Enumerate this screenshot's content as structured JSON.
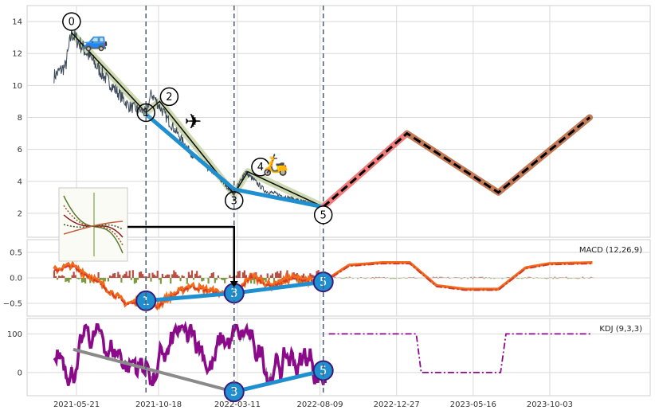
{
  "colors": {
    "grid": "#d9d9d9",
    "frame": "#cfcfcf",
    "price": "#3b4a5a",
    "wave_black": "#111111",
    "wave_highlight": "#c9d6a8",
    "blue": "#1f8fcf",
    "forecast_red": "#f07b7b",
    "forecast_brown": "#c27a56",
    "vline": "#4a5a70",
    "macd_line": "#f26a1b",
    "macd_signal": "#d23a2b",
    "macd_hist_pos": "#b23a2c",
    "macd_hist_neg": "#6f8f2a",
    "kdj": "#8a0a8a",
    "kdj_dark": "#555555",
    "badge_fill": "#1f8fcf",
    "badge_stroke": "#3a1a7a"
  },
  "chart_data": [
    {
      "type": "line",
      "panel": "price",
      "ylim": [
        0.5,
        15
      ],
      "yticks": [
        2,
        4,
        6,
        8,
        10,
        12,
        14
      ],
      "x_dates": [
        "2021-05-21",
        "2021-10-18",
        "2022-03-11",
        "2022-08-09",
        "2022-12-27",
        "2023-05-16",
        "2023-10-03"
      ],
      "price_series": {
        "start": "2021-04-10",
        "end": "2022-08-20",
        "anchors": [
          [
            "2021-04-10",
            10.6
          ],
          [
            "2021-05-01",
            11.2
          ],
          [
            "2021-05-12",
            13.3
          ],
          [
            "2021-06-05",
            12.2
          ],
          [
            "2021-07-10",
            10.6
          ],
          [
            "2021-08-25",
            8.7
          ],
          [
            "2021-09-25",
            8.3
          ],
          [
            "2021-10-05",
            9.5
          ],
          [
            "2021-11-05",
            7.8
          ],
          [
            "2021-12-20",
            5.6
          ],
          [
            "2022-02-01",
            4.4
          ],
          [
            "2022-03-05",
            3.2
          ],
          [
            "2022-03-25",
            4.6
          ],
          [
            "2022-05-01",
            3.4
          ],
          [
            "2022-07-01",
            2.8
          ],
          [
            "2022-08-15",
            2.4
          ]
        ]
      },
      "wave_points": [
        {
          "label": "0",
          "date": "2021-05-12",
          "value": 13.3
        },
        {
          "label": "1",
          "date": "2021-09-25",
          "value": 8.3
        },
        {
          "label": "2",
          "date": "2021-10-20",
          "value": 9.0
        },
        {
          "label": "3",
          "date": "2022-03-05",
          "value": 3.2
        },
        {
          "label": "4",
          "date": "2022-03-30",
          "value": 4.6
        },
        {
          "label": "5",
          "date": "2022-08-15",
          "value": 2.4
        }
      ],
      "blue_line": [
        [
          "2021-09-25",
          8.2
        ],
        [
          "2022-03-05",
          3.5
        ],
        [
          "2022-08-15",
          2.4
        ]
      ],
      "forecast_red": [
        [
          "2022-08-15",
          2.4
        ],
        [
          "2023-01-15",
          7.0
        ]
      ],
      "forecast_brown": [
        [
          "2023-01-15",
          7.0
        ],
        [
          "2023-07-01",
          3.3
        ],
        [
          "2023-12-15",
          8.0
        ]
      ],
      "forecast_dashed": [
        [
          "2022-08-15",
          2.4
        ],
        [
          "2023-01-15",
          7.0
        ],
        [
          "2023-07-01",
          3.3
        ],
        [
          "2023-12-15",
          8.0
        ]
      ],
      "vlines": [
        "2021-09-25",
        "2022-03-05",
        "2022-08-15"
      ],
      "emoji": [
        {
          "glyph": "🚙",
          "date": "2021-06-25",
          "value": 12.4
        },
        {
          "glyph": "✈",
          "date": "2021-12-20",
          "value": 7.3
        },
        {
          "glyph": "🛵",
          "date": "2022-05-20",
          "value": 4.6
        }
      ]
    },
    {
      "type": "line",
      "panel": "macd",
      "label": "MACD (12,26,9)",
      "ylim": [
        -0.75,
        0.75
      ],
      "yticks": [
        0.5,
        0.0,
        -0.5
      ],
      "ytick_labels": [
        "0.5",
        "0.0",
        "−0.5"
      ],
      "macd_anchors": [
        [
          "2021-04-10",
          0.15
        ],
        [
          "2021-05-10",
          0.25
        ],
        [
          "2021-06-20",
          0.0
        ],
        [
          "2021-07-20",
          -0.25
        ],
        [
          "2021-08-20",
          -0.5
        ],
        [
          "2021-09-25",
          -0.45
        ],
        [
          "2021-10-15",
          -0.55
        ],
        [
          "2021-11-10",
          -0.35
        ],
        [
          "2021-12-15",
          -0.15
        ],
        [
          "2022-01-20",
          -0.25
        ],
        [
          "2022-03-05",
          -0.35
        ],
        [
          "2022-04-05",
          0.05
        ],
        [
          "2022-05-10",
          -0.15
        ],
        [
          "2022-06-20",
          0.0
        ],
        [
          "2022-08-15",
          -0.08
        ],
        [
          "2022-10-01",
          0.25
        ],
        [
          "2022-12-01",
          0.3
        ],
        [
          "2023-01-20",
          0.3
        ],
        [
          "2023-03-10",
          -0.15
        ],
        [
          "2023-05-01",
          -0.22
        ],
        [
          "2023-07-01",
          -0.22
        ],
        [
          "2023-08-20",
          0.2
        ],
        [
          "2023-10-01",
          0.28
        ],
        [
          "2023-12-20",
          0.3
        ]
      ],
      "blue_line": [
        [
          "2021-09-25",
          -0.45
        ],
        [
          "2022-03-05",
          -0.3
        ],
        [
          "2022-08-15",
          -0.08
        ]
      ],
      "badges": [
        {
          "label": "1",
          "date": "2021-09-25",
          "value": -0.45
        },
        {
          "label": "3",
          "date": "2022-03-05",
          "value": -0.3
        },
        {
          "label": "5",
          "date": "2022-08-15",
          "value": -0.08
        }
      ]
    },
    {
      "type": "line",
      "panel": "kdj",
      "label": "KDJ (9,3,3)",
      "ylim": [
        -60,
        140
      ],
      "yticks": [
        100,
        0
      ],
      "kdj_range": {
        "start": "2021-04-10",
        "end": "2022-08-20",
        "low": -35,
        "high": 125
      },
      "forecast_segments": [
        [
          "2022-08-25",
          100
        ],
        [
          "2023-02-01",
          100
        ],
        [
          "2023-02-10",
          0
        ],
        [
          "2023-07-05",
          0
        ],
        [
          "2023-07-15",
          100
        ],
        [
          "2023-12-20",
          100
        ]
      ],
      "grey_line": [
        [
          "2021-05-15",
          60
        ],
        [
          "2022-03-05",
          -50
        ]
      ],
      "blue_line": [
        [
          "2022-03-05",
          -50
        ],
        [
          "2022-08-15",
          5
        ]
      ],
      "badges": [
        {
          "label": "3",
          "date": "2022-03-05",
          "value": -50
        },
        {
          "label": "5",
          "date": "2022-08-15",
          "value": 5
        }
      ]
    }
  ],
  "inset": {
    "name": "thumbnail-inset"
  }
}
